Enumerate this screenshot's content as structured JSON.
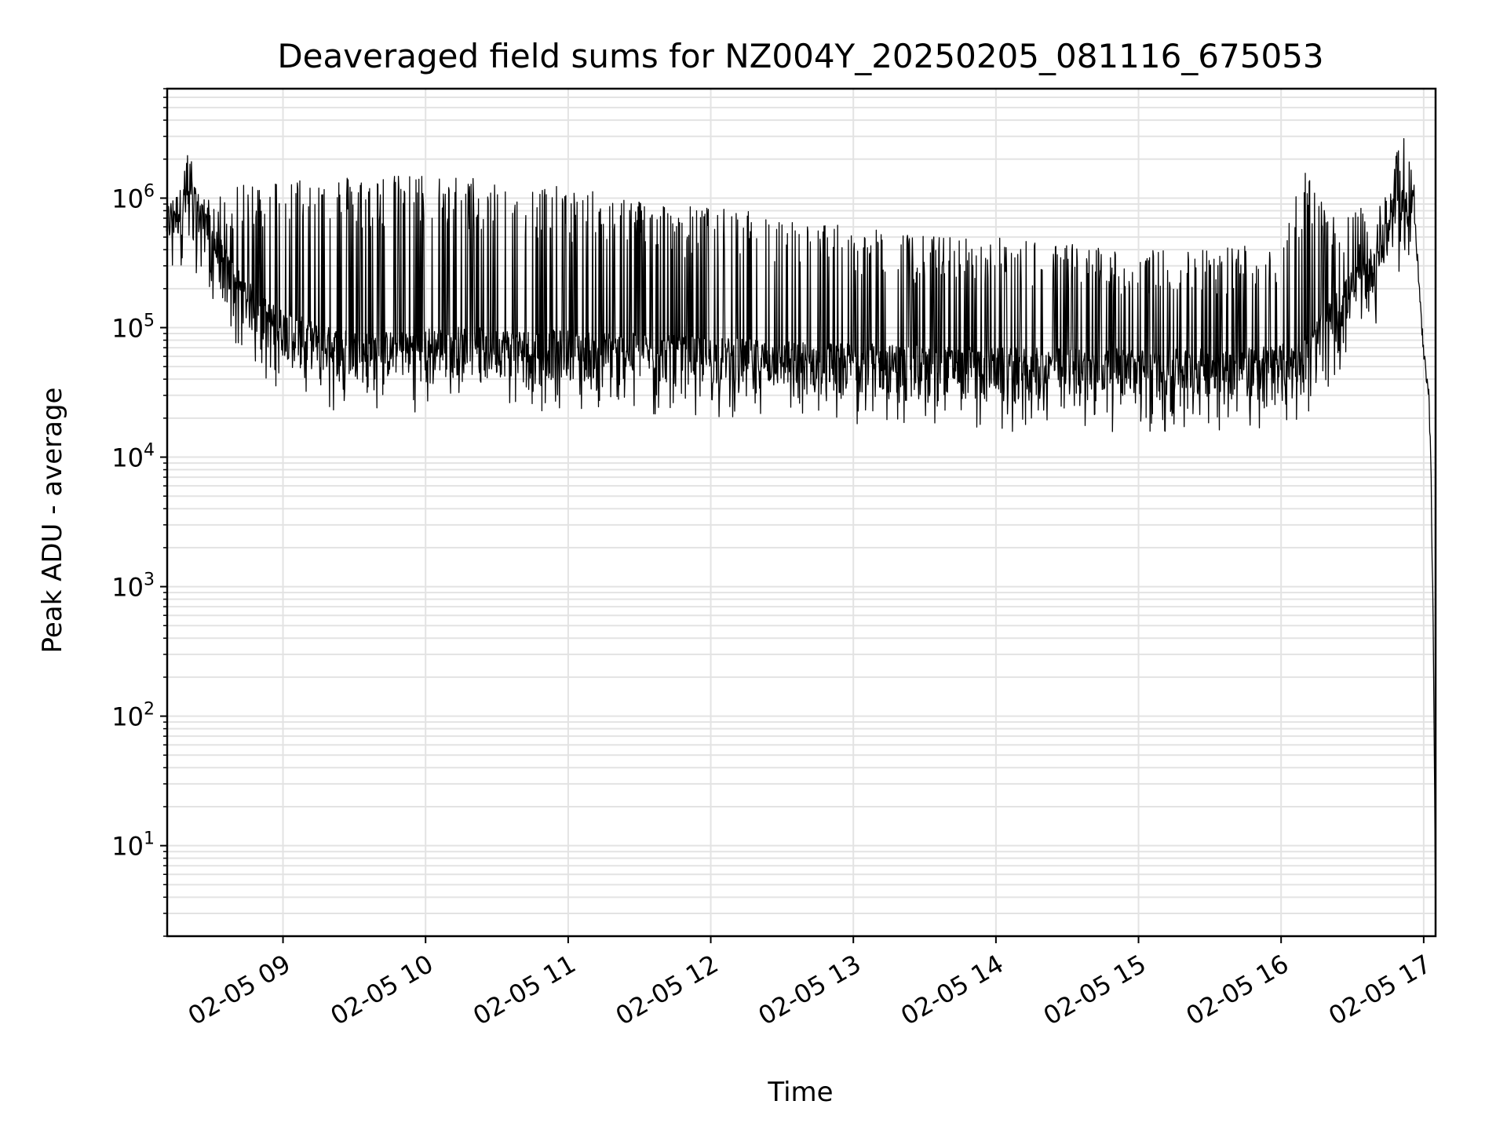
{
  "chart_data": {
    "type": "line",
    "title": "Deaveraged field sums for NZ004Y_20250205_081116_675053",
    "xlabel": "Time",
    "ylabel": "Peak ADU - average",
    "y_scale": "log",
    "xlim": [
      "2025-02-05 08:11:16",
      "2025-02-05 17:05:00"
    ],
    "ylim": [
      2,
      7000000
    ],
    "grid": true,
    "grid_minor": true,
    "legend": "none",
    "line_color": "#000000",
    "grid_color": "#e3e3e3",
    "x_ticks": [
      {
        "value": "2025-02-05 09:00",
        "label": "02-05 09"
      },
      {
        "value": "2025-02-05 10:00",
        "label": "02-05 10"
      },
      {
        "value": "2025-02-05 11:00",
        "label": "02-05 11"
      },
      {
        "value": "2025-02-05 12:00",
        "label": "02-05 12"
      },
      {
        "value": "2025-02-05 13:00",
        "label": "02-05 13"
      },
      {
        "value": "2025-02-05 14:00",
        "label": "02-05 14"
      },
      {
        "value": "2025-02-05 15:00",
        "label": "02-05 15"
      },
      {
        "value": "2025-02-05 16:00",
        "label": "02-05 16"
      },
      {
        "value": "2025-02-05 17:00",
        "label": "02-05 17"
      }
    ],
    "y_ticks": [
      {
        "value": 10,
        "base": "10",
        "exp": "1"
      },
      {
        "value": 100,
        "base": "10",
        "exp": "2"
      },
      {
        "value": 1000,
        "base": "10",
        "exp": "3"
      },
      {
        "value": 10000,
        "base": "10",
        "exp": "4"
      },
      {
        "value": 100000,
        "base": "10",
        "exp": "5"
      },
      {
        "value": 1000000,
        "base": "10",
        "exp": "6"
      }
    ],
    "series": [
      {
        "x": [
          "2025-02-05 08:11",
          "2025-02-05 08:15",
          "2025-02-05 08:20",
          "2025-02-05 08:25",
          "2025-02-05 08:30",
          "2025-02-05 08:35",
          "2025-02-05 08:40",
          "2025-02-05 08:45",
          "2025-02-05 08:50",
          "2025-02-05 08:55",
          "2025-02-05 09:00",
          "2025-02-05 09:10",
          "2025-02-05 09:20",
          "2025-02-05 09:30",
          "2025-02-05 09:40",
          "2025-02-05 09:50",
          "2025-02-05 10:00",
          "2025-02-05 10:15",
          "2025-02-05 10:30",
          "2025-02-05 10:45",
          "2025-02-05 11:00",
          "2025-02-05 11:15",
          "2025-02-05 11:30",
          "2025-02-05 11:45",
          "2025-02-05 12:00",
          "2025-02-05 12:15",
          "2025-02-05 12:30",
          "2025-02-05 12:45",
          "2025-02-05 13:00",
          "2025-02-05 13:15",
          "2025-02-05 13:30",
          "2025-02-05 13:45",
          "2025-02-05 14:00",
          "2025-02-05 14:15",
          "2025-02-05 14:30",
          "2025-02-05 14:45",
          "2025-02-05 15:00",
          "2025-02-05 15:15",
          "2025-02-05 15:30",
          "2025-02-05 15:45",
          "2025-02-05 16:00",
          "2025-02-05 16:10",
          "2025-02-05 16:20",
          "2025-02-05 16:30",
          "2025-02-05 16:40",
          "2025-02-05 16:45",
          "2025-02-05 16:48",
          "2025-02-05 16:52",
          "2025-02-05 16:56",
          "2025-02-05 17:00",
          "2025-02-05 17:02",
          "2025-02-05 17:03",
          "2025-02-05 17:04",
          "2025-02-05 17:05"
        ],
        "baseline": [
          600000,
          700000,
          900000,
          700000,
          450000,
          280000,
          200000,
          150000,
          120000,
          100000,
          90000,
          75000,
          65000,
          62000,
          60000,
          62000,
          65000,
          66000,
          64000,
          62000,
          62000,
          60000,
          58000,
          56000,
          55000,
          53000,
          51000,
          50000,
          49000,
          48000,
          47000,
          46000,
          45000,
          45000,
          45000,
          45000,
          44000,
          44000,
          45000,
          46000,
          48000,
          55000,
          100000,
          180000,
          300000,
          500000,
          700000,
          900000,
          800000,
          60000,
          35000,
          10000,
          500,
          3
        ],
        "peak": [
          800000,
          900000,
          2600000,
          1000000,
          1000000,
          1100000,
          1200000,
          1300000,
          1400000,
          1400000,
          1450000,
          1500000,
          1500000,
          1500000,
          1500000,
          1500000,
          1550000,
          1500000,
          1400000,
          1300000,
          1200000,
          1100000,
          1000000,
          900000,
          850000,
          800000,
          700000,
          650000,
          600000,
          550000,
          520000,
          500000,
          500000,
          480000,
          450000,
          420000,
          400000,
          400000,
          420000,
          450000,
          500000,
          1800000,
          700000,
          800000,
          900000,
          1200000,
          2000000,
          3800000,
          1500000,
          60000,
          35000,
          10000,
          500,
          3
        ]
      }
    ]
  }
}
